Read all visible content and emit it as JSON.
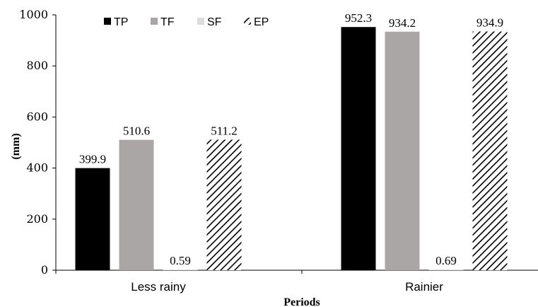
{
  "chart_data": {
    "type": "bar",
    "title": "",
    "xlabel": "Periods",
    "ylabel": "(mm)",
    "ylim": [
      0,
      1000
    ],
    "yticks": [
      0,
      200,
      400,
      600,
      800,
      1000
    ],
    "categories": [
      "Less rainy",
      "Rainier"
    ],
    "series": [
      {
        "name": "TP",
        "values": [
          399.9,
          952.3
        ],
        "labels": [
          "399.9",
          "952.3"
        ],
        "fill": "#000000",
        "pattern": "solid"
      },
      {
        "name": "TF",
        "values": [
          510.6,
          934.2
        ],
        "labels": [
          "510.6",
          "934.2"
        ],
        "fill": "#aaa6a6",
        "pattern": "solid"
      },
      {
        "name": "SF",
        "values": [
          0.59,
          0.69
        ],
        "labels": [
          "0.59",
          "0.69"
        ],
        "fill": "#dcdcdc",
        "pattern": "solid"
      },
      {
        "name": "EP",
        "values": [
          511.2,
          934.9
        ],
        "labels": [
          "511.2",
          "934.9"
        ],
        "fill": "#000000",
        "pattern": "diagonal-hatch"
      }
    ],
    "legend_position": "top",
    "grid": false
  }
}
